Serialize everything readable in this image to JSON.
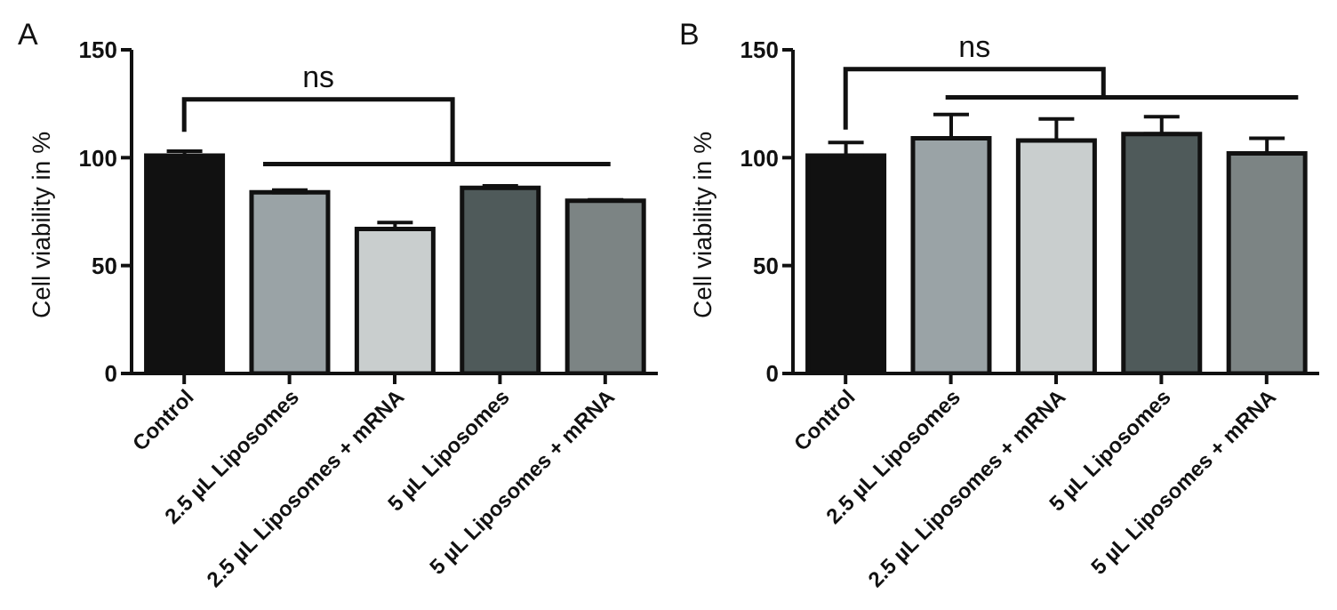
{
  "chart_data": [
    {
      "type": "bar",
      "title": "A",
      "ylabel": "Cell viability in %",
      "categories": [
        "Control",
        "2.5 µL Liposomes",
        "2.5 µL Liposomes + mRNA",
        "5 µL Liposomes",
        "5 µL Liposomes + mRNA"
      ],
      "values": [
        101,
        84,
        67,
        86,
        80
      ],
      "errors": [
        [
          101,
          103
        ],
        [
          84,
          85
        ],
        [
          67,
          70
        ],
        [
          86,
          87
        ],
        [
          80,
          80.5
        ]
      ],
      "colors": [
        "#111111",
        "#9aa3a6",
        "#c9cece",
        "#4f5a5a",
        "#7c8484"
      ],
      "ylim": [
        0,
        150
      ],
      "yticks": [
        0,
        50,
        100,
        150
      ],
      "grid": false,
      "annotations": [
        "ns"
      ]
    },
    {
      "type": "bar",
      "title": "B",
      "ylabel": "Cell viability in %",
      "categories": [
        "Control",
        "2.5 µL Liposomes",
        "2.5 µL Liposomes + mRNA",
        "5 µL Liposomes",
        "5 µL Liposomes + mRNA"
      ],
      "values": [
        101,
        109,
        108,
        111,
        102
      ],
      "errors": [
        [
          101,
          107
        ],
        [
          109,
          120
        ],
        [
          108,
          118
        ],
        [
          111,
          119
        ],
        [
          102,
          109
        ]
      ],
      "colors": [
        "#111111",
        "#9aa3a6",
        "#c9cece",
        "#4f5a5a",
        "#7c8484"
      ],
      "ylim": [
        0,
        150
      ],
      "yticks": [
        0,
        50,
        100,
        150
      ],
      "grid": false,
      "annotations": [
        "ns"
      ]
    }
  ]
}
